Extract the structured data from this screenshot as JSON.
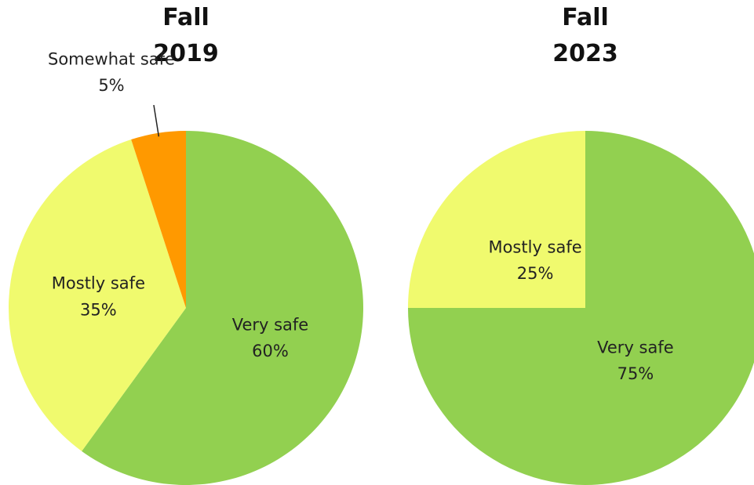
{
  "chart_data": [
    {
      "type": "pie",
      "title": "Fall 2019",
      "categories": [
        "Very safe",
        "Mostly safe",
        "Somewhat safe"
      ],
      "values": [
        60,
        35,
        5
      ],
      "value_labels": [
        "60%",
        "35%",
        "5%"
      ],
      "colors": [
        "#92d050",
        "#f0fa6e",
        "#ff9900"
      ]
    },
    {
      "type": "pie",
      "title": "Fall 2023",
      "categories": [
        "Very safe",
        "Mostly safe"
      ],
      "values": [
        75,
        25
      ],
      "value_labels": [
        "75%",
        "25%"
      ],
      "colors": [
        "#92d050",
        "#f0fa6e"
      ]
    }
  ]
}
